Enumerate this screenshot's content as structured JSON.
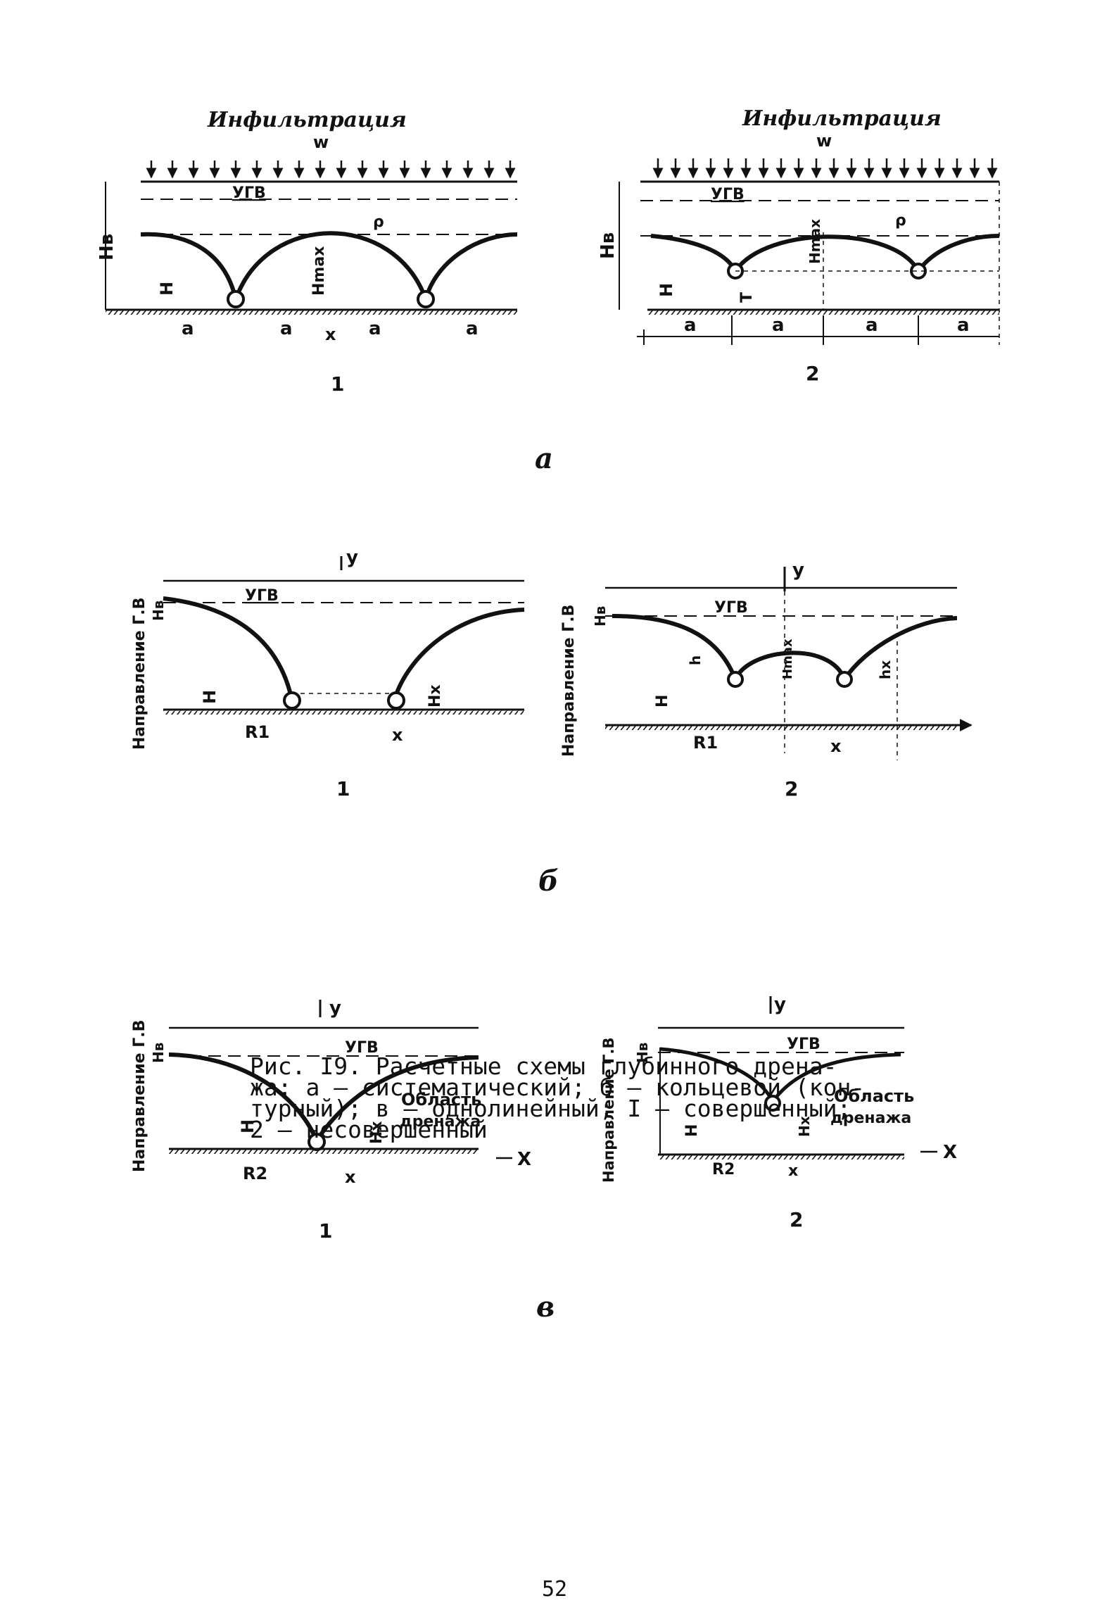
{
  "labels": {
    "infiltration": "Инфильтрация",
    "w": "w",
    "ugv": "УГВ",
    "hv": "Нв",
    "h_big": "Н",
    "h_small": "h",
    "h_max": "Hmax",
    "t": "Т",
    "x": "x",
    "a": "a",
    "rho": "ρ",
    "y": "y",
    "r1": "R1",
    "r2": "R2",
    "hx": "hx",
    "hx_cap": "Hx",
    "x_axis": "X",
    "direction_gv": "Направление Г.В",
    "drainage_area_line1": "Область",
    "drainage_area_line2": "дренажа",
    "num1": "1",
    "num2": "2"
  },
  "panels": {
    "a": "а",
    "b": "б",
    "v": "в"
  },
  "caption": {
    "line1": "Рис. I9. Расчетные схемы глубинного дрена-",
    "line2": "жа: а – систематический; б – кольцевой (кон-",
    "line3": "турный); в – однолинейный; I – совершенный;",
    "line4": "2 – несовершенный"
  },
  "page_number": "52"
}
